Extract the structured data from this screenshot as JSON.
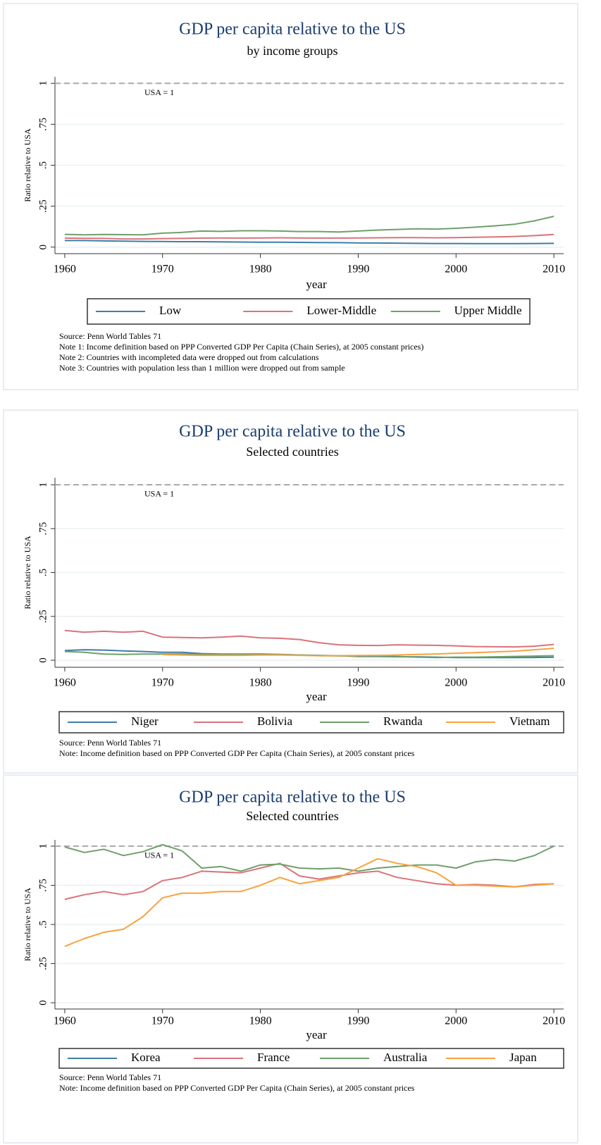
{
  "chart_data": [
    {
      "type": "line",
      "title": "GDP per capita relative to the US",
      "subtitle": "by income groups",
      "xlabel": "year",
      "ylabel": "Ratio relative to USA",
      "annotation": "USA = 1",
      "reference_line": 1,
      "x": [
        1960,
        1962,
        1964,
        1966,
        1968,
        1970,
        1972,
        1974,
        1976,
        1978,
        1980,
        1982,
        1984,
        1986,
        1988,
        1990,
        1992,
        1994,
        1996,
        1998,
        2000,
        2002,
        2004,
        2006,
        2008,
        2010
      ],
      "xlim": [
        1959,
        2011
      ],
      "xticks": [
        1960,
        1970,
        1980,
        1990,
        2000,
        2010
      ],
      "ylim": [
        -0.04,
        1.04
      ],
      "yticks": [
        0,
        {
          "value": 0.25,
          "label": ".25"
        },
        {
          "value": 0.5,
          "label": ".5"
        },
        {
          "value": 0.75,
          "label": ".75"
        },
        1
      ],
      "grid": true,
      "series": [
        {
          "name": "Low",
          "color": "#3f7ea6",
          "values": [
            0.04,
            0.04,
            0.038,
            0.036,
            0.035,
            0.034,
            0.033,
            0.033,
            0.032,
            0.031,
            0.03,
            0.03,
            0.029,
            0.028,
            0.027,
            0.026,
            0.025,
            0.024,
            0.023,
            0.022,
            0.022,
            0.021,
            0.021,
            0.021,
            0.022,
            0.023
          ]
        },
        {
          "name": "Lower-Middle",
          "color": "#d9737a",
          "values": [
            0.055,
            0.054,
            0.053,
            0.05,
            0.05,
            0.052,
            0.053,
            0.055,
            0.056,
            0.055,
            0.056,
            0.057,
            0.056,
            0.055,
            0.055,
            0.056,
            0.057,
            0.058,
            0.058,
            0.057,
            0.058,
            0.06,
            0.062,
            0.065,
            0.07,
            0.077
          ]
        },
        {
          "name": "Upper Middle",
          "color": "#6fa06a",
          "values": [
            0.078,
            0.075,
            0.077,
            0.076,
            0.075,
            0.085,
            0.09,
            0.098,
            0.096,
            0.1,
            0.1,
            0.098,
            0.095,
            0.095,
            0.092,
            0.098,
            0.104,
            0.108,
            0.112,
            0.11,
            0.115,
            0.122,
            0.13,
            0.14,
            0.16,
            0.188
          ]
        }
      ],
      "notes": [
        "Source: Penn World Tables 71",
        "Note 1: Income definition based on PPP Converted GDP Per Capita (Chain Series), at 2005 constant prices)",
        "Note 2: Countries with incompleted data were dropped out from calculations",
        "Note 3: Countries with population less than 1 million were dropped out from sample"
      ]
    },
    {
      "type": "line",
      "title": "GDP per capita relative to the US",
      "subtitle": "Selected countries",
      "xlabel": "year",
      "ylabel": "Ratio relative to USA",
      "annotation": "USA = 1",
      "reference_line": 1,
      "x": [
        1960,
        1962,
        1964,
        1966,
        1968,
        1970,
        1972,
        1974,
        1976,
        1978,
        1980,
        1982,
        1984,
        1986,
        1988,
        1990,
        1992,
        1994,
        1996,
        1998,
        2000,
        2002,
        2004,
        2006,
        2008,
        2010
      ],
      "xlim": [
        1959,
        2011
      ],
      "xticks": [
        1960,
        1970,
        1980,
        1990,
        2000,
        2010
      ],
      "ylim": [
        -0.04,
        1.04
      ],
      "yticks": [
        0,
        {
          "value": 0.25,
          "label": ".25"
        },
        {
          "value": 0.5,
          "label": ".5"
        },
        {
          "value": 0.75,
          "label": ".75"
        },
        1
      ],
      "grid": true,
      "series": [
        {
          "name": "Niger",
          "color": "#3f7ea6",
          "values": [
            0.055,
            0.06,
            0.058,
            0.053,
            0.05,
            0.045,
            0.045,
            0.038,
            0.035,
            0.035,
            0.035,
            0.033,
            0.03,
            0.028,
            0.025,
            0.022,
            0.022,
            0.02,
            0.02,
            0.018,
            0.015,
            0.015,
            0.015,
            0.015,
            0.016,
            0.017
          ]
        },
        {
          "name": "Bolivia",
          "color": "#d9737a",
          "values": [
            0.17,
            0.16,
            0.165,
            0.16,
            0.165,
            0.132,
            0.13,
            0.128,
            0.132,
            0.138,
            0.128,
            0.125,
            0.118,
            0.1,
            0.088,
            0.085,
            0.084,
            0.088,
            0.086,
            0.085,
            0.082,
            0.078,
            0.077,
            0.076,
            0.08,
            0.09
          ]
        },
        {
          "name": "Rwanda",
          "color": "#6fa06a",
          "values": [
            0.05,
            0.045,
            0.035,
            0.033,
            0.035,
            0.035,
            0.036,
            0.034,
            0.033,
            0.034,
            0.032,
            0.032,
            0.03,
            0.026,
            0.025,
            0.024,
            0.025,
            0.022,
            0.018,
            0.015,
            0.018,
            0.018,
            0.02,
            0.022,
            0.024,
            0.026
          ]
        },
        {
          "name": "Vietnam",
          "color": "#f8a23c",
          "values": [
            null,
            null,
            null,
            null,
            null,
            0.032,
            0.03,
            0.028,
            0.028,
            0.028,
            0.03,
            0.03,
            0.028,
            0.026,
            0.026,
            0.027,
            0.028,
            0.03,
            0.033,
            0.036,
            0.04,
            0.043,
            0.048,
            0.052,
            0.06,
            0.068
          ]
        }
      ],
      "notes": [
        "Source: Penn World Tables 71",
        "Note: Income definition based on PPP Converted GDP Per Capita (Chain Series), at 2005 constant prices"
      ]
    },
    {
      "type": "line",
      "title": "GDP per capita relative to the US",
      "subtitle": "Selected countries",
      "xlabel": "year",
      "ylabel": "Ratio relative to USA",
      "annotation": "USA = 1",
      "reference_line": 1,
      "x": [
        1960,
        1962,
        1964,
        1966,
        1968,
        1970,
        1972,
        1974,
        1976,
        1978,
        1980,
        1982,
        1984,
        1986,
        1988,
        1990,
        1992,
        1994,
        1996,
        1998,
        2000,
        2002,
        2004,
        2006,
        2008,
        2010
      ],
      "xlim": [
        1959,
        2011
      ],
      "xticks": [
        1960,
        1970,
        1980,
        1990,
        2000,
        2010
      ],
      "ylim": [
        -0.04,
        1.04
      ],
      "yticks": [
        0,
        {
          "value": 0.25,
          "label": ".25"
        },
        {
          "value": 0.5,
          "label": ".5"
        },
        {
          "value": 0.75,
          "label": ".75"
        },
        1
      ],
      "grid": true,
      "series": [
        {
          "name": "Korea",
          "color": "#3f7ea6",
          "values": [
            null,
            null,
            null,
            null,
            null,
            null,
            null,
            null,
            null,
            null,
            null,
            null,
            null,
            null,
            null,
            null,
            null,
            null,
            null,
            null,
            null,
            null,
            null,
            null,
            null,
            null
          ]
        },
        {
          "name": "France",
          "color": "#d9737a",
          "values": [
            0.66,
            0.69,
            0.71,
            0.69,
            0.71,
            0.78,
            0.8,
            0.84,
            0.835,
            0.83,
            0.86,
            0.89,
            0.81,
            0.79,
            0.81,
            0.83,
            0.84,
            0.8,
            0.78,
            0.76,
            0.75,
            0.755,
            0.75,
            0.74,
            0.755,
            0.76
          ]
        },
        {
          "name": "Australia",
          "color": "#6fa06a",
          "values": [
            0.995,
            0.96,
            0.98,
            0.94,
            0.965,
            1.01,
            0.97,
            0.86,
            0.87,
            0.84,
            0.88,
            0.885,
            0.86,
            0.855,
            0.86,
            0.84,
            0.86,
            0.87,
            0.88,
            0.88,
            0.86,
            0.9,
            0.915,
            0.905,
            0.94,
            1.0
          ]
        },
        {
          "name": "Japan",
          "color": "#f8a23c",
          "values": [
            0.36,
            0.41,
            0.45,
            0.47,
            0.55,
            0.67,
            0.7,
            0.7,
            0.71,
            0.71,
            0.75,
            0.8,
            0.76,
            0.78,
            0.8,
            0.86,
            0.92,
            0.89,
            0.87,
            0.83,
            0.75,
            0.75,
            0.745,
            0.74,
            0.75,
            0.76
          ]
        }
      ],
      "notes": [
        "Source: Penn World Tables 71",
        "Note: Income definition based on PPP Converted GDP Per Capita (Chain Series), at 2005 constant prices"
      ]
    }
  ]
}
